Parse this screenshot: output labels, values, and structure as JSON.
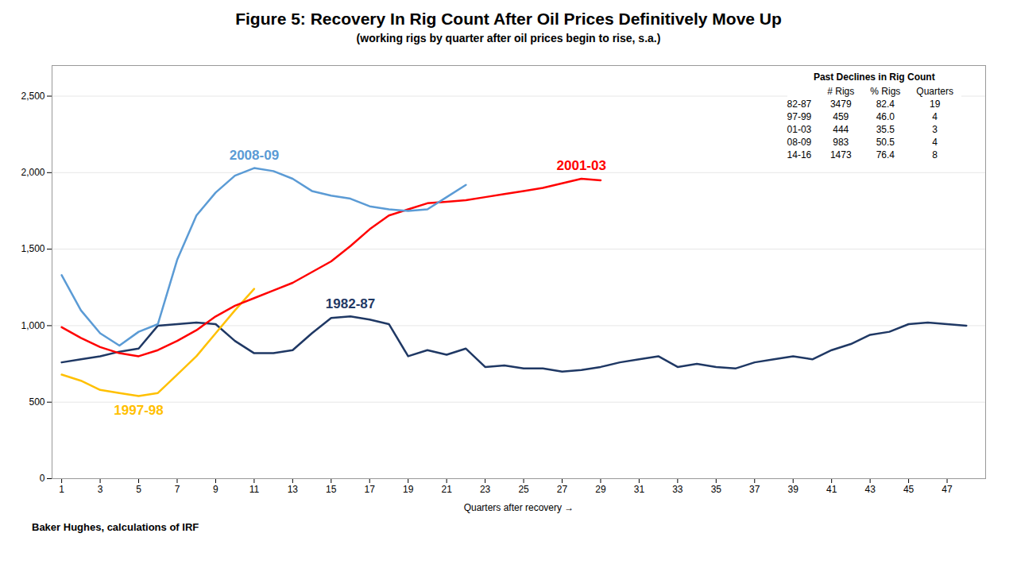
{
  "chart_data": {
    "type": "line",
    "title": "Figure 5: Recovery In Rig Count After Oil Prices Definitively Move Up",
    "subtitle": "(working rigs by quarter after oil prices begin to rise, s.a.)",
    "xlabel": "Quarters after recovery →",
    "source": "Baker Hughes, calculations of IRF",
    "xlim": [
      0.5,
      49
    ],
    "xticks": [
      1,
      3,
      5,
      7,
      9,
      11,
      13,
      15,
      17,
      19,
      21,
      23,
      25,
      27,
      29,
      31,
      33,
      35,
      37,
      39,
      41,
      43,
      45,
      47
    ],
    "ylim": [
      0,
      2700
    ],
    "yticks": [
      0,
      500,
      {
        "value": 1000,
        "label": "1,000"
      },
      {
        "value": 1500,
        "label": "1,500"
      },
      {
        "value": 2000,
        "label": "2,000"
      },
      {
        "value": 2500,
        "label": "2,500"
      }
    ],
    "grid": true,
    "series": [
      {
        "name": "1982-87",
        "color": "#1f3864",
        "x": [
          1,
          2,
          3,
          4,
          5,
          6,
          7,
          8,
          9,
          10,
          11,
          12,
          13,
          14,
          15,
          16,
          17,
          18,
          19,
          20,
          21,
          22,
          23,
          24,
          25,
          26,
          27,
          28,
          29,
          30,
          31,
          32,
          33,
          34,
          35,
          36,
          37,
          38,
          39,
          40,
          41,
          42,
          43,
          44,
          45,
          46,
          47,
          48
        ],
        "values": [
          760,
          780,
          800,
          830,
          850,
          1000,
          1010,
          1020,
          1010,
          900,
          820,
          820,
          840,
          950,
          1050,
          1060,
          1040,
          1010,
          800,
          840,
          810,
          850,
          730,
          740,
          720,
          720,
          700,
          710,
          730,
          760,
          780,
          800,
          730,
          750,
          730,
          720,
          760,
          780,
          800,
          780,
          840,
          880,
          940,
          960,
          1010,
          1020,
          1010,
          1000
        ]
      },
      {
        "name": "1997-98",
        "color": "#ffc000",
        "x": [
          1,
          2,
          3,
          4,
          5,
          6,
          7,
          8,
          9,
          10,
          11
        ],
        "values": [
          680,
          640,
          580,
          560,
          540,
          560,
          680,
          800,
          950,
          1100,
          1240
        ]
      },
      {
        "name": "2001-03",
        "color": "#ff0000",
        "x": [
          1,
          2,
          3,
          4,
          5,
          6,
          7,
          8,
          9,
          10,
          11,
          12,
          13,
          14,
          15,
          16,
          17,
          18,
          19,
          20,
          21,
          22,
          23,
          24,
          25,
          26,
          27,
          28,
          29
        ],
        "values": [
          990,
          920,
          860,
          820,
          800,
          840,
          900,
          970,
          1060,
          1130,
          1180,
          1230,
          1280,
          1350,
          1420,
          1520,
          1630,
          1720,
          1760,
          1800,
          1810,
          1820,
          1840,
          1860,
          1880,
          1900,
          1930,
          1960,
          1950
        ]
      },
      {
        "name": "2008-09",
        "color": "#5b9bd5",
        "x": [
          1,
          2,
          3,
          4,
          5,
          6,
          7,
          8,
          9,
          10,
          11,
          12,
          13,
          14,
          15,
          16,
          17,
          18,
          19,
          20,
          21,
          22
        ],
        "values": [
          1330,
          1100,
          950,
          870,
          960,
          1010,
          1430,
          1720,
          1870,
          1980,
          2030,
          2010,
          1960,
          1880,
          1850,
          1830,
          1780,
          1760,
          1750,
          1760,
          1840,
          1920
        ]
      }
    ],
    "table": {
      "title": "Past Declines in Rig Count",
      "columns": [
        "# Rigs",
        "% Rigs",
        "Quarters"
      ],
      "rows": [
        {
          "label": "82-87",
          "values": [
            "3479",
            "82.4",
            "19"
          ]
        },
        {
          "label": "97-99",
          "values": [
            "459",
            "46.0",
            "4"
          ]
        },
        {
          "label": "01-03",
          "values": [
            "444",
            "35.5",
            "3"
          ]
        },
        {
          "label": "08-09",
          "values": [
            "983",
            "50.5",
            "4"
          ]
        },
        {
          "label": "14-16",
          "values": [
            "1473",
            "76.4",
            "8"
          ]
        }
      ]
    }
  }
}
